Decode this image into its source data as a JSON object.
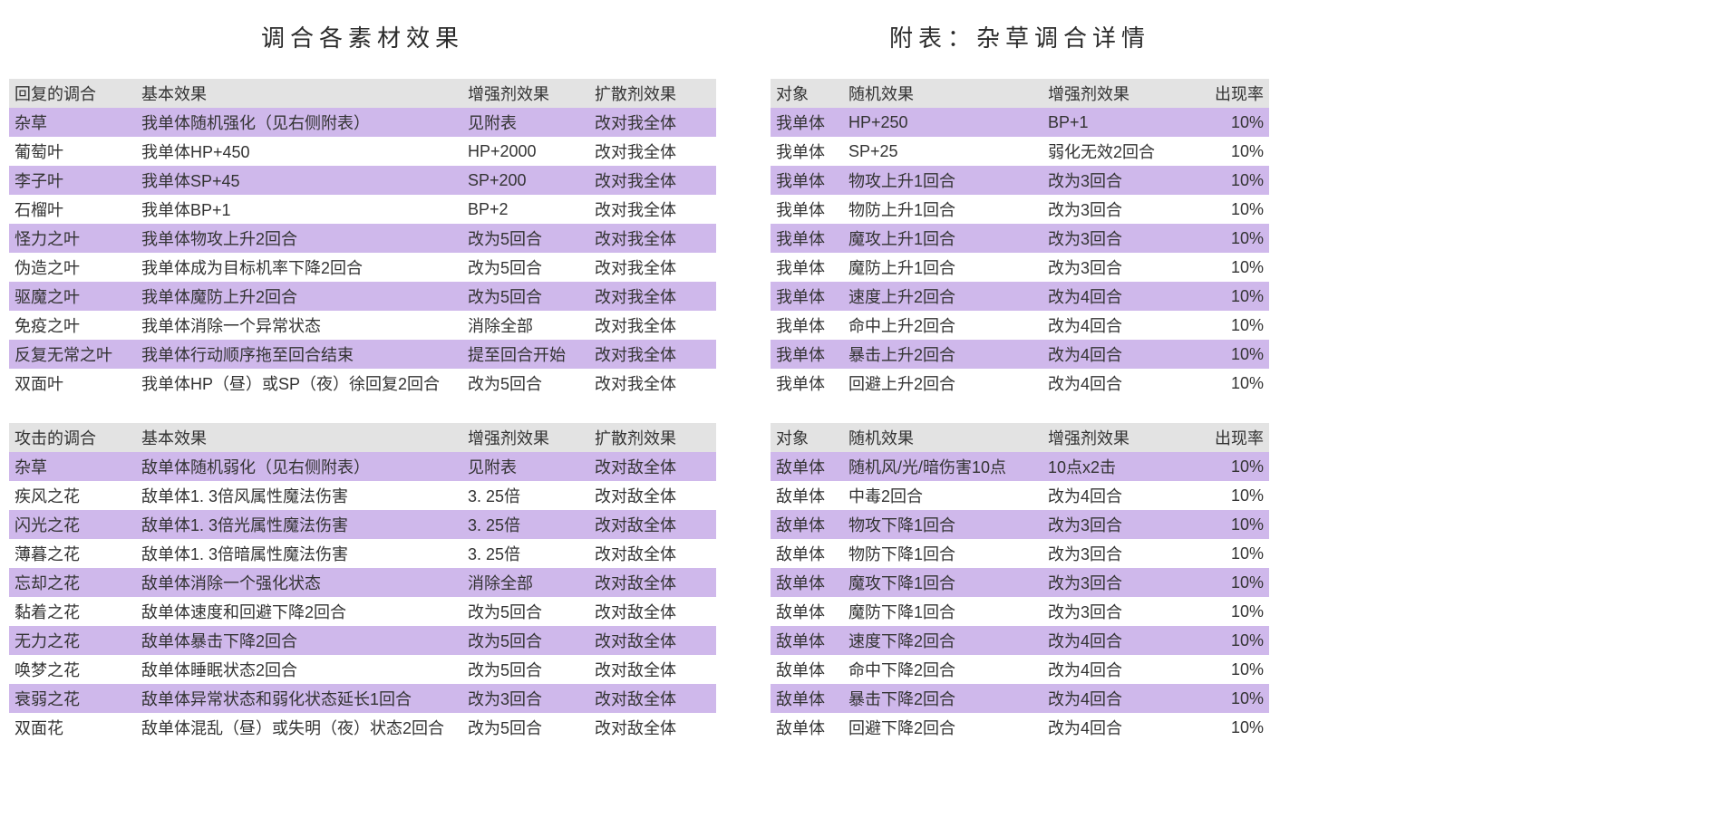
{
  "colors": {
    "header_bg": "#e3e3e3",
    "stripe_bg": "#cfb8eb",
    "plain_bg": "#ffffff",
    "text": "#333333"
  },
  "left": {
    "title": "调合各素材效果",
    "table1": {
      "headers": [
        "回复的调合",
        "基本效果",
        "增强剂效果",
        "扩散剂效果"
      ],
      "col_widths": [
        "140px",
        "360px",
        "140px",
        "140px"
      ],
      "rows": [
        [
          "杂草",
          "我单体随机强化（见右侧附表）",
          "见附表",
          "改对我全体"
        ],
        [
          "葡萄叶",
          "我单体HP+450",
          "HP+2000",
          "改对我全体"
        ],
        [
          "李子叶",
          "我单体SP+45",
          "SP+200",
          "改对我全体"
        ],
        [
          "石榴叶",
          "我单体BP+1",
          "BP+2",
          "改对我全体"
        ],
        [
          "怪力之叶",
          "我单体物攻上升2回合",
          "改为5回合",
          "改对我全体"
        ],
        [
          "伪造之叶",
          "我单体成为目标机率下降2回合",
          "改为5回合",
          "改对我全体"
        ],
        [
          "驱魔之叶",
          "我单体魔防上升2回合",
          "改为5回合",
          "改对我全体"
        ],
        [
          "免疫之叶",
          "我单体消除一个异常状态",
          "消除全部",
          "改对我全体"
        ],
        [
          "反复无常之叶",
          "我单体行动顺序拖至回合结束",
          "提至回合开始",
          "改对我全体"
        ],
        [
          "双面叶",
          "我单体HP（昼）或SP（夜）徐回复2回合",
          "改为5回合",
          "改对我全体"
        ]
      ]
    },
    "table2": {
      "headers": [
        "攻击的调合",
        "基本效果",
        "增强剂效果",
        "扩散剂效果"
      ],
      "col_widths": [
        "140px",
        "360px",
        "140px",
        "140px"
      ],
      "rows": [
        [
          "杂草",
          "敌单体随机弱化（见右侧附表）",
          "见附表",
          "改对敌全体"
        ],
        [
          "疾风之花",
          "敌单体1. 3倍风属性魔法伤害",
          "3. 25倍",
          "改对敌全体"
        ],
        [
          "闪光之花",
          "敌单体1. 3倍光属性魔法伤害",
          "3. 25倍",
          "改对敌全体"
        ],
        [
          "薄暮之花",
          "敌单体1. 3倍暗属性魔法伤害",
          "3. 25倍",
          "改对敌全体"
        ],
        [
          "忘却之花",
          "敌单体消除一个强化状态",
          "消除全部",
          "改对敌全体"
        ],
        [
          "黏着之花",
          "敌单体速度和回避下降2回合",
          "改为5回合",
          "改对敌全体"
        ],
        [
          "无力之花",
          "敌单体暴击下降2回合",
          "改为5回合",
          "改对敌全体"
        ],
        [
          "唤梦之花",
          "敌单体睡眠状态2回合",
          "改为5回合",
          "改对敌全体"
        ],
        [
          "衰弱之花",
          "敌单体异常状态和弱化状态延长1回合",
          "改为3回合",
          "改对敌全体"
        ],
        [
          "双面花",
          "敌单体混乱（昼）或失明（夜）状态2回合",
          "改为5回合",
          "改对敌全体"
        ]
      ]
    }
  },
  "right": {
    "title": "附表：杂草调合详情",
    "table1": {
      "headers": [
        "对象",
        "随机效果",
        "增强剂效果",
        "出现率"
      ],
      "col_widths": [
        "80px",
        "220px",
        "160px",
        "90px"
      ],
      "rows": [
        [
          "我单体",
          "HP+250",
          "BP+1",
          "10%"
        ],
        [
          "我单体",
          "SP+25",
          "弱化无效2回合",
          "10%"
        ],
        [
          "我单体",
          "物攻上升1回合",
          "改为3回合",
          "10%"
        ],
        [
          "我单体",
          "物防上升1回合",
          "改为3回合",
          "10%"
        ],
        [
          "我单体",
          "魔攻上升1回合",
          "改为3回合",
          "10%"
        ],
        [
          "我单体",
          "魔防上升1回合",
          "改为3回合",
          "10%"
        ],
        [
          "我单体",
          "速度上升2回合",
          "改为4回合",
          "10%"
        ],
        [
          "我单体",
          "命中上升2回合",
          "改为4回合",
          "10%"
        ],
        [
          "我单体",
          "暴击上升2回合",
          "改为4回合",
          "10%"
        ],
        [
          "我单体",
          "回避上升2回合",
          "改为4回合",
          "10%"
        ]
      ]
    },
    "table2": {
      "headers": [
        "对象",
        "随机效果",
        "增强剂效果",
        "出现率"
      ],
      "col_widths": [
        "80px",
        "220px",
        "160px",
        "90px"
      ],
      "rows": [
        [
          "敌单体",
          "随机风/光/暗伤害10点",
          "10点x2击",
          "10%"
        ],
        [
          "敌单体",
          "中毒2回合",
          "改为4回合",
          "10%"
        ],
        [
          "敌单体",
          "物攻下降1回合",
          "改为3回合",
          "10%"
        ],
        [
          "敌单体",
          "物防下降1回合",
          "改为3回合",
          "10%"
        ],
        [
          "敌单体",
          "魔攻下降1回合",
          "改为3回合",
          "10%"
        ],
        [
          "敌单体",
          "魔防下降1回合",
          "改为3回合",
          "10%"
        ],
        [
          "敌单体",
          "速度下降2回合",
          "改为4回合",
          "10%"
        ],
        [
          "敌单体",
          "命中下降2回合",
          "改为4回合",
          "10%"
        ],
        [
          "敌单体",
          "暴击下降2回合",
          "改为4回合",
          "10%"
        ],
        [
          "敌单体",
          "回避下降2回合",
          "改为4回合",
          "10%"
        ]
      ]
    }
  }
}
